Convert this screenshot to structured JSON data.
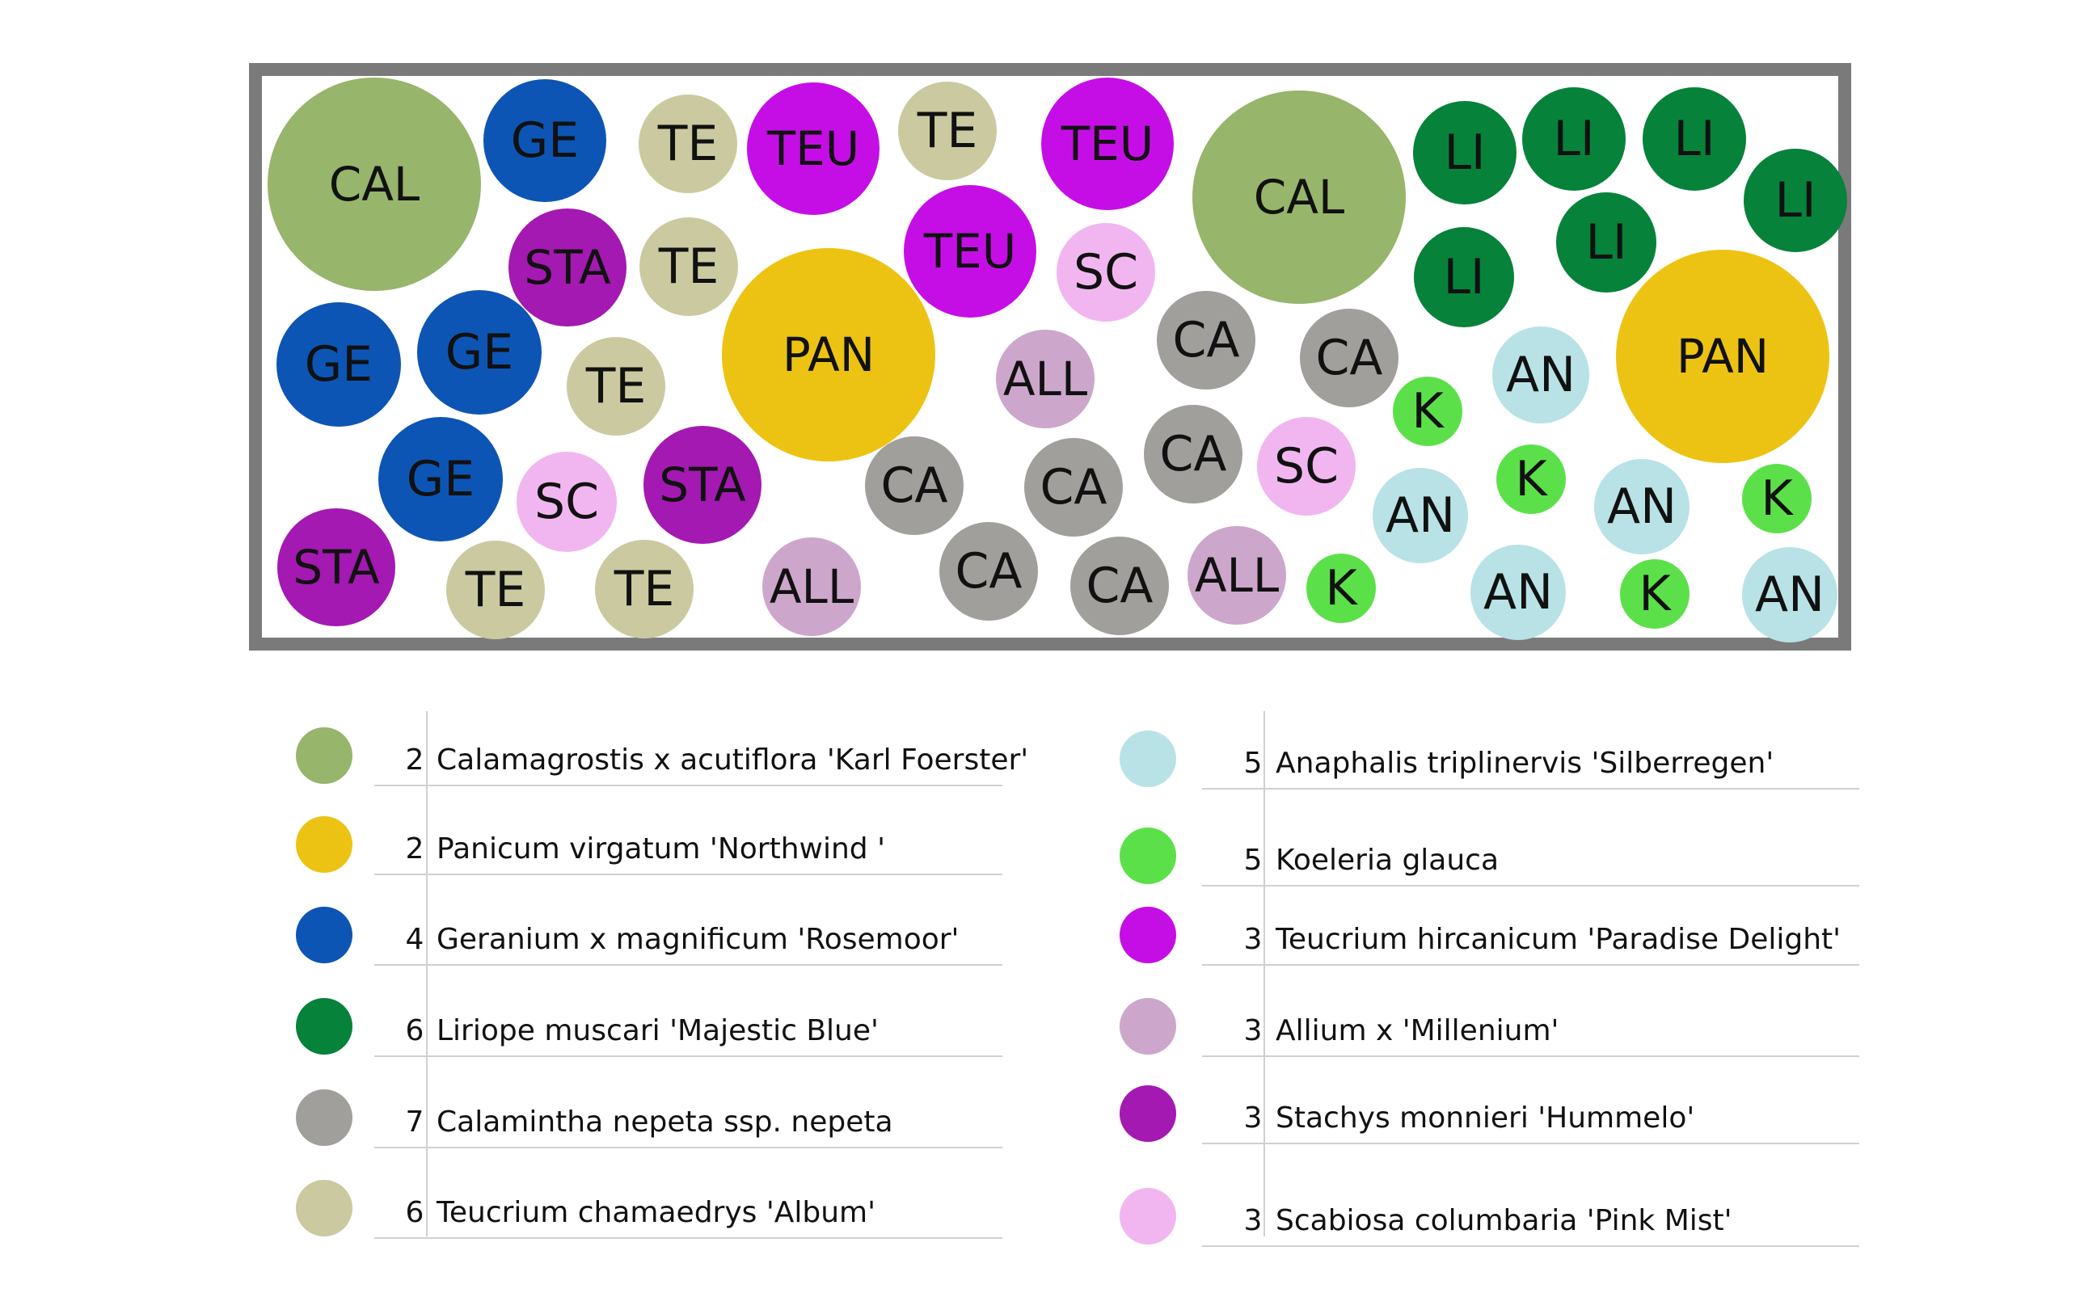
{
  "colors": {
    "CAL": "#97b56b",
    "PAN": "#edc313",
    "GE": "#0d55b4",
    "LI": "#06823b",
    "CA": "#a09f9b",
    "TE": "#cbc9a0",
    "AN": "#b8e2e6",
    "K": "#5ce04a",
    "TEU": "#c50ee6",
    "ALL": "#cda6cc",
    "STA": "#a319b1",
    "SC": "#f1b6f0"
  },
  "plants": [
    {
      "code": "CAL",
      "label": "CAL"
    },
    {
      "code": "GE",
      "label": "GE"
    },
    {
      "code": "TE",
      "label": "TE"
    },
    {
      "code": "TEU",
      "label": "TEU"
    },
    {
      "code": "TE",
      "label": "TE"
    },
    {
      "code": "TEU",
      "label": "TEU"
    },
    {
      "code": "CAL",
      "label": "CAL"
    },
    {
      "code": "LI",
      "label": "LI"
    },
    {
      "code": "LI",
      "label": "LI"
    },
    {
      "code": "LI",
      "label": "LI"
    },
    {
      "code": "LI",
      "label": "LI"
    },
    {
      "code": "STA",
      "label": "STA"
    },
    {
      "code": "TE",
      "label": "TE"
    },
    {
      "code": "TEU",
      "label": "TEU"
    },
    {
      "code": "SC",
      "label": "SC"
    },
    {
      "code": "LI",
      "label": "LI"
    },
    {
      "code": "LI",
      "label": "LI"
    },
    {
      "code": "GE",
      "label": "GE"
    },
    {
      "code": "GE",
      "label": "GE"
    },
    {
      "code": "TE",
      "label": "TE"
    },
    {
      "code": "PAN",
      "label": "PAN"
    },
    {
      "code": "ALL",
      "label": "ALL"
    },
    {
      "code": "CA",
      "label": "CA"
    },
    {
      "code": "CA",
      "label": "CA"
    },
    {
      "code": "AN",
      "label": "AN"
    },
    {
      "code": "PAN",
      "label": "PAN"
    },
    {
      "code": "K",
      "label": "K"
    },
    {
      "code": "GE",
      "label": "GE"
    },
    {
      "code": "SC",
      "label": "SC"
    },
    {
      "code": "STA",
      "label": "STA"
    },
    {
      "code": "CA",
      "label": "CA"
    },
    {
      "code": "CA",
      "label": "CA"
    },
    {
      "code": "CA",
      "label": "CA"
    },
    {
      "code": "SC",
      "label": "SC"
    },
    {
      "code": "AN",
      "label": "AN"
    },
    {
      "code": "K",
      "label": "K"
    },
    {
      "code": "AN",
      "label": "AN"
    },
    {
      "code": "K",
      "label": "K"
    },
    {
      "code": "STA",
      "label": "STA"
    },
    {
      "code": "TE",
      "label": "TE"
    },
    {
      "code": "TE",
      "label": "TE"
    },
    {
      "code": "ALL",
      "label": "ALL"
    },
    {
      "code": "CA",
      "label": "CA"
    },
    {
      "code": "CA",
      "label": "CA"
    },
    {
      "code": "ALL",
      "label": "ALL"
    },
    {
      "code": "K",
      "label": "K"
    },
    {
      "code": "AN",
      "label": "AN"
    },
    {
      "code": "K",
      "label": "K"
    },
    {
      "code": "AN",
      "label": "AN"
    }
  ],
  "legend": {
    "left": [
      {
        "code": "CAL",
        "count": "2",
        "name": "Calamagrostis x acutiflora 'Karl Foerster'"
      },
      {
        "code": "PAN",
        "count": "2",
        "name": "Panicum virgatum 'Northwind '"
      },
      {
        "code": "GE",
        "count": "4",
        "name": "Geranium x magnificum 'Rosemoor'"
      },
      {
        "code": "LI",
        "count": "6",
        "name": "Liriope muscari 'Majestic Blue'"
      },
      {
        "code": "CA",
        "count": "7",
        "name": "Calamintha nepeta ssp. nepeta"
      },
      {
        "code": "TE",
        "count": "6",
        "name": "Teucrium chamaedrys 'Album'"
      }
    ],
    "right": [
      {
        "code": "AN",
        "count": "5",
        "name": "Anaphalis triplinervis 'Silberregen'"
      },
      {
        "code": "K",
        "count": "5",
        "name": "Koeleria glauca"
      },
      {
        "code": "TEU",
        "count": "3",
        "name": "Teucrium  hircanicum 'Paradise Delight'"
      },
      {
        "code": "ALL",
        "count": "3",
        "name": "Allium x 'Millenium'"
      },
      {
        "code": "STA",
        "count": "3",
        "name": "Stachys monnieri 'Hummelo'"
      },
      {
        "code": "SC",
        "count": "3",
        "name": "Scabiosa columbaria 'Pink Mist'"
      }
    ]
  }
}
